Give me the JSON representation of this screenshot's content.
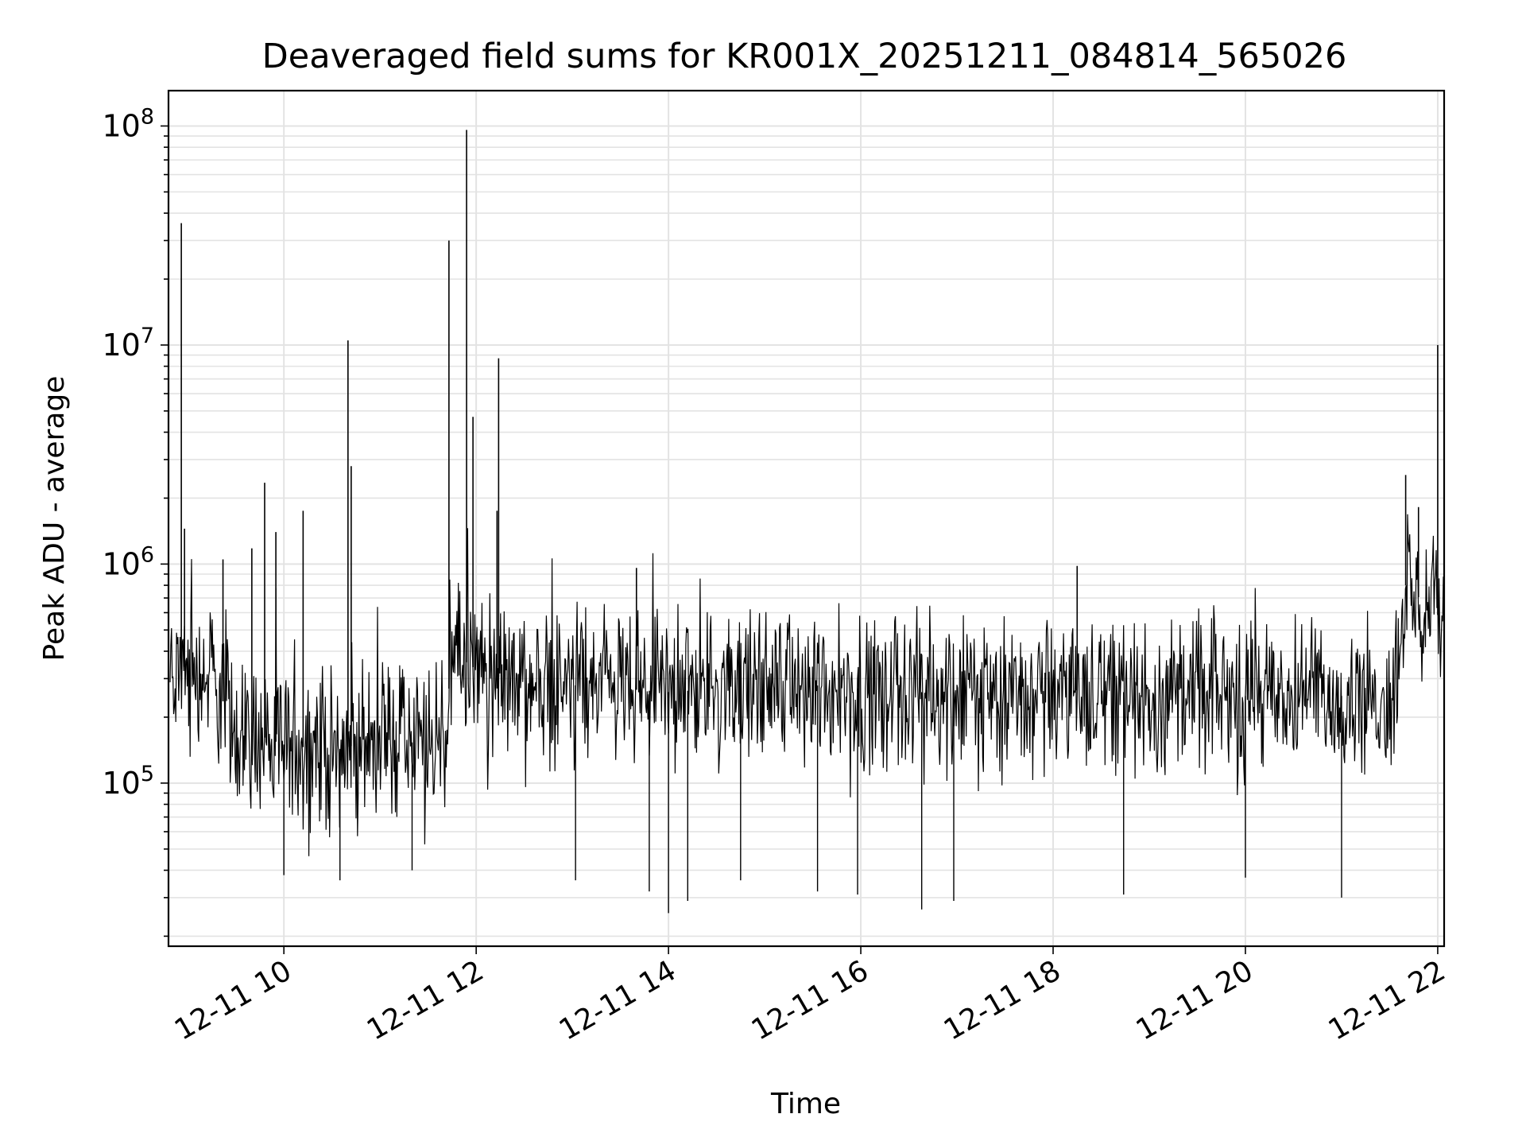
{
  "chart_data": {
    "type": "line",
    "title": "Deaveraged field sums for KR001X_20251211_084814_565026",
    "xlabel": "Time",
    "ylabel": "Peak ADU - average",
    "yscale": "log",
    "ylim": [
      18000,
      145000000
    ],
    "xlim": [
      "2025-12-11 08:48",
      "2025-12-11 22:04"
    ],
    "grid": true,
    "x_ticks": [
      "12-11 10",
      "12-11 12",
      "12-11 14",
      "12-11 16",
      "12-11 18",
      "12-11 20",
      "12-11 22"
    ],
    "y_ticks": [
      "10^5",
      "10^6",
      "10^7",
      "10^8"
    ],
    "line_color": "#000000",
    "series": [
      {
        "x": [
          "2025-12-11 08:49",
          "2025-12-11 09:00",
          "2025-12-11 09:15",
          "2025-12-11 09:30",
          "2025-12-11 10:00",
          "2025-12-11 10:30",
          "2025-12-11 11:00",
          "2025-12-11 11:30",
          "2025-12-11 11:40",
          "2025-12-11 11:45",
          "2025-12-11 12:00",
          "2025-12-11 12:30",
          "2025-12-11 13:00",
          "2025-12-11 13:30",
          "2025-12-11 14:00",
          "2025-12-11 14:30",
          "2025-12-11 15:00",
          "2025-12-11 15:30",
          "2025-12-11 16:00",
          "2025-12-11 16:30",
          "2025-12-11 17:00",
          "2025-12-11 17:30",
          "2025-12-11 18:00",
          "2025-12-11 18:30",
          "2025-12-11 19:00",
          "2025-12-11 19:30",
          "2025-12-11 20:00",
          "2025-12-11 20:30",
          "2025-12-11 21:00",
          "2025-12-11 21:30",
          "2025-12-11 21:35",
          "2025-12-11 21:40",
          "2025-12-11 22:04"
        ],
        "values": [
          300000,
          350000,
          300000,
          180000,
          150000,
          140000,
          160000,
          150000,
          150000,
          400000,
          330000,
          280000,
          280000,
          270000,
          260000,
          270000,
          280000,
          280000,
          270000,
          260000,
          260000,
          250000,
          260000,
          270000,
          250000,
          260000,
          250000,
          240000,
          250000,
          250000,
          300000,
          800000,
          550000
        ]
      }
    ],
    "spikes": [
      {
        "x": "2025-12-11 08:56",
        "y": 36000000
      },
      {
        "x": "2025-12-11 08:58",
        "y": 1450000
      },
      {
        "x": "2025-12-11 09:22",
        "y": 1050000
      },
      {
        "x": "2025-12-11 09:40",
        "y": 1180000
      },
      {
        "x": "2025-12-11 09:48",
        "y": 2350000
      },
      {
        "x": "2025-12-11 09:55",
        "y": 1400000
      },
      {
        "x": "2025-12-11 10:12",
        "y": 1750000
      },
      {
        "x": "2025-12-11 10:40",
        "y": 10500000
      },
      {
        "x": "2025-12-11 10:42",
        "y": 2800000
      },
      {
        "x": "2025-12-11 11:43",
        "y": 30000000
      },
      {
        "x": "2025-12-11 11:54",
        "y": 96000000
      },
      {
        "x": "2025-12-11 11:58",
        "y": 4700000
      },
      {
        "x": "2025-12-11 12:14",
        "y": 8700000
      },
      {
        "x": "2025-12-11 12:13",
        "y": 1750000
      },
      {
        "x": "2025-12-11 13:40",
        "y": 960000
      },
      {
        "x": "2025-12-11 18:15",
        "y": 980000
      },
      {
        "x": "2025-12-11 21:40",
        "y": 2550000
      },
      {
        "x": "2025-12-11 21:48",
        "y": 1820000
      },
      {
        "x": "2025-12-11 22:00",
        "y": 10000000
      }
    ],
    "dips": [
      {
        "x": "2025-12-11 10:00",
        "y": 38000
      },
      {
        "x": "2025-12-11 10:35",
        "y": 36000
      },
      {
        "x": "2025-12-11 11:20",
        "y": 40000
      },
      {
        "x": "2025-12-11 13:02",
        "y": 36000
      },
      {
        "x": "2025-12-11 13:48",
        "y": 32000
      },
      {
        "x": "2025-12-11 14:00",
        "y": 25500
      },
      {
        "x": "2025-12-11 14:12",
        "y": 29000
      },
      {
        "x": "2025-12-11 14:45",
        "y": 36000
      },
      {
        "x": "2025-12-11 15:33",
        "y": 32000
      },
      {
        "x": "2025-12-11 15:58",
        "y": 31000
      },
      {
        "x": "2025-12-11 16:38",
        "y": 26500
      },
      {
        "x": "2025-12-11 16:58",
        "y": 29000
      },
      {
        "x": "2025-12-11 18:44",
        "y": 31000
      },
      {
        "x": "2025-12-11 20:00",
        "y": 37000
      },
      {
        "x": "2025-12-11 21:00",
        "y": 30000
      }
    ]
  }
}
